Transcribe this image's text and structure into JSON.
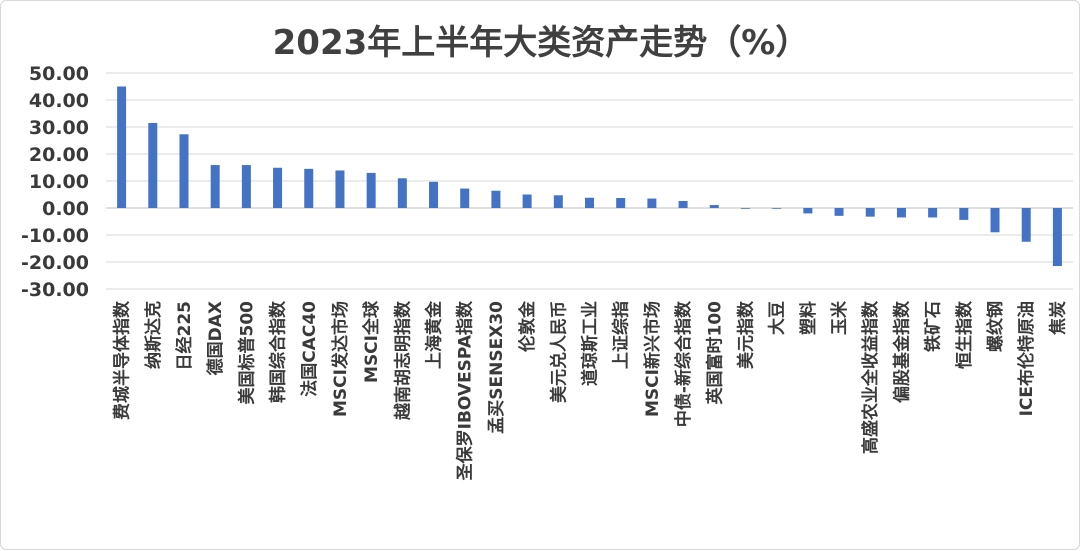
{
  "chart_data": {
    "type": "bar",
    "title": "2023年上半年大类资产走势（%）",
    "xlabel": "",
    "ylabel": "",
    "ylim": [
      -30,
      50
    ],
    "yticks": [
      50,
      40,
      30,
      20,
      10,
      0,
      -10,
      -20,
      -30
    ],
    "ytick_labels": [
      "50.00",
      "40.00",
      "30.00",
      "20.00",
      "10.00",
      "0.00",
      "-10.00",
      "-20.00",
      "-30.00"
    ],
    "grid": true,
    "legend": "none",
    "bar_color": "#4472c4",
    "categories": [
      "费城半导体指数",
      "纳斯达克",
      "日经225",
      "德国DAX",
      "美国标普500",
      "韩国综合指数",
      "法国CAC40",
      "MSCI发达市场",
      "MSCI全球",
      "越南胡志明指数",
      "上海黄金",
      "圣保罗IBOVESPA指数",
      "孟买SENSEX30",
      "伦敦金",
      "美元兑人民币",
      "道琼斯工业",
      "上证综指",
      "MSCI新兴市场",
      "中债-新综合指数",
      "英国富时100",
      "美元指数",
      "大豆",
      "塑料",
      "玉米",
      "高盛农业全收益指数",
      "偏股基金指数",
      "铁矿石",
      "恒生指数",
      "螺纹钢",
      "ICE布伦特原油",
      "焦炭"
    ],
    "values": [
      45.0,
      31.5,
      27.3,
      15.9,
      15.9,
      14.9,
      14.5,
      13.9,
      13.0,
      11.0,
      9.7,
      7.2,
      6.4,
      5.0,
      4.7,
      3.8,
      3.7,
      3.5,
      2.6,
      1.1,
      -0.2,
      -0.3,
      -2.0,
      -2.9,
      -3.2,
      -3.5,
      -3.5,
      -4.4,
      -9.0,
      -12.5,
      -21.5
    ]
  }
}
